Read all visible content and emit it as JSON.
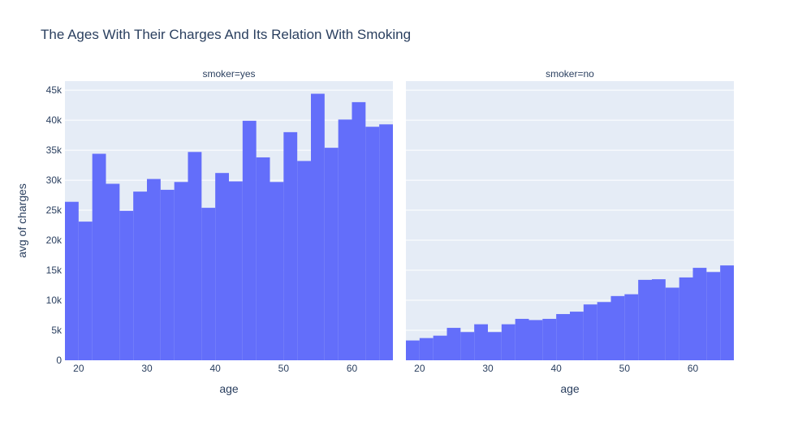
{
  "chart_data": {
    "type": "bar",
    "title": "The Ages With Their Charges And Its Relation With Smoking",
    "ylabel": "avg of charges",
    "xlabel": "age",
    "ylim": [
      0,
      46500
    ],
    "xlim": [
      18,
      66
    ],
    "bin_width": 2,
    "color": "#636efa",
    "plot_bg": "#e5ecf6",
    "grid": true,
    "y_ticks": [
      0,
      5000,
      10000,
      15000,
      20000,
      25000,
      30000,
      35000,
      40000,
      45000
    ],
    "y_tick_labels": [
      "0",
      "5k",
      "10k",
      "15k",
      "20k",
      "25k",
      "30k",
      "35k",
      "40k",
      "45k"
    ],
    "x_ticks": [
      20,
      30,
      40,
      50,
      60
    ],
    "x_tick_labels": [
      "20",
      "30",
      "40",
      "50",
      "60"
    ],
    "facets": [
      {
        "label": "smoker=yes",
        "bins": [
          {
            "x": 18,
            "y": 26400
          },
          {
            "x": 20,
            "y": 23100
          },
          {
            "x": 22,
            "y": 34400
          },
          {
            "x": 24,
            "y": 29400
          },
          {
            "x": 26,
            "y": 24900
          },
          {
            "x": 28,
            "y": 28100
          },
          {
            "x": 30,
            "y": 30200
          },
          {
            "x": 32,
            "y": 28400
          },
          {
            "x": 34,
            "y": 29700
          },
          {
            "x": 36,
            "y": 34700
          },
          {
            "x": 38,
            "y": 25400
          },
          {
            "x": 40,
            "y": 31200
          },
          {
            "x": 42,
            "y": 29800
          },
          {
            "x": 44,
            "y": 39900
          },
          {
            "x": 46,
            "y": 33800
          },
          {
            "x": 48,
            "y": 29700
          },
          {
            "x": 50,
            "y": 38000
          },
          {
            "x": 52,
            "y": 33200
          },
          {
            "x": 54,
            "y": 44400
          },
          {
            "x": 56,
            "y": 35400
          },
          {
            "x": 58,
            "y": 40100
          },
          {
            "x": 60,
            "y": 43000
          },
          {
            "x": 62,
            "y": 38900
          },
          {
            "x": 64,
            "y": 39300
          }
        ]
      },
      {
        "label": "smoker=no",
        "bins": [
          {
            "x": 18,
            "y": 3300
          },
          {
            "x": 20,
            "y": 3700
          },
          {
            "x": 22,
            "y": 4100
          },
          {
            "x": 24,
            "y": 5400
          },
          {
            "x": 26,
            "y": 4700
          },
          {
            "x": 28,
            "y": 6000
          },
          {
            "x": 30,
            "y": 4700
          },
          {
            "x": 32,
            "y": 6000
          },
          {
            "x": 34,
            "y": 6900
          },
          {
            "x": 36,
            "y": 6700
          },
          {
            "x": 38,
            "y": 6900
          },
          {
            "x": 40,
            "y": 7700
          },
          {
            "x": 42,
            "y": 8100
          },
          {
            "x": 44,
            "y": 9300
          },
          {
            "x": 46,
            "y": 9700
          },
          {
            "x": 48,
            "y": 10700
          },
          {
            "x": 50,
            "y": 11000
          },
          {
            "x": 52,
            "y": 13400
          },
          {
            "x": 54,
            "y": 13500
          },
          {
            "x": 56,
            "y": 12100
          },
          {
            "x": 58,
            "y": 13800
          },
          {
            "x": 60,
            "y": 15400
          },
          {
            "x": 62,
            "y": 14700
          },
          {
            "x": 64,
            "y": 15800
          }
        ]
      }
    ]
  }
}
